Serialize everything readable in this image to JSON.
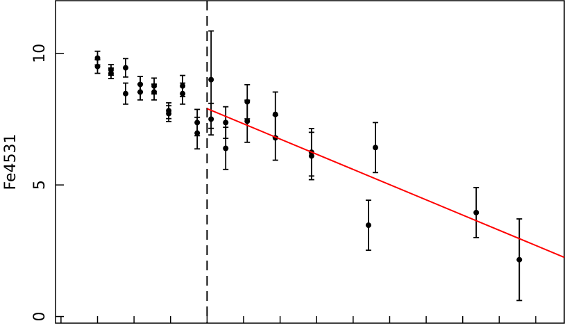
{
  "chart_data": {
    "type": "scatter",
    "ylabel": "Fe4531",
    "xlim": [
      -0.15,
      13.78
    ],
    "ylim": [
      -0.25,
      12
    ],
    "xticks": [
      0,
      1,
      2,
      3,
      4,
      5,
      6,
      7,
      8,
      9,
      10,
      11,
      12,
      13
    ],
    "yticks": [
      0,
      5,
      10
    ],
    "vline": 4,
    "series": [
      {
        "color": "#000000",
        "x": [
          1,
          1,
          1.37,
          1.37,
          1.77,
          1.77,
          2.17,
          2.17,
          2.55,
          2.55,
          2.95,
          2.95,
          3.33,
          3.33,
          3.73,
          3.73,
          4.11,
          4.11,
          4.51,
          4.51,
          5.1,
          5.1,
          5.87,
          5.87,
          6.86,
          6.86,
          8.42,
          8.61,
          11.37,
          12.55
        ],
        "values": [
          9.82,
          9.5,
          9.37,
          9.24,
          9.45,
          8.47,
          8.82,
          8.53,
          8.76,
          8.53,
          7.82,
          7.71,
          8.76,
          8.47,
          7.37,
          6.97,
          9.0,
          7.5,
          7.37,
          6.39,
          8.16,
          7.42,
          7.68,
          6.79,
          6.24,
          6.1,
          3.47,
          6.42,
          3.95,
          2.16
        ],
        "errors": [
          0.26,
          0.26,
          0.2,
          0.2,
          0.35,
          0.4,
          0.3,
          0.3,
          0.3,
          0.3,
          0.3,
          0.3,
          0.4,
          0.4,
          0.5,
          0.6,
          1.85,
          0.6,
          0.6,
          0.8,
          0.65,
          0.8,
          0.85,
          0.85,
          0.9,
          0.9,
          0.95,
          0.95,
          0.95,
          1.55
        ]
      }
    ],
    "fit": {
      "color": "#ff0000",
      "x": [
        4,
        13.78
      ],
      "values": [
        7.9,
        2.25
      ]
    }
  }
}
